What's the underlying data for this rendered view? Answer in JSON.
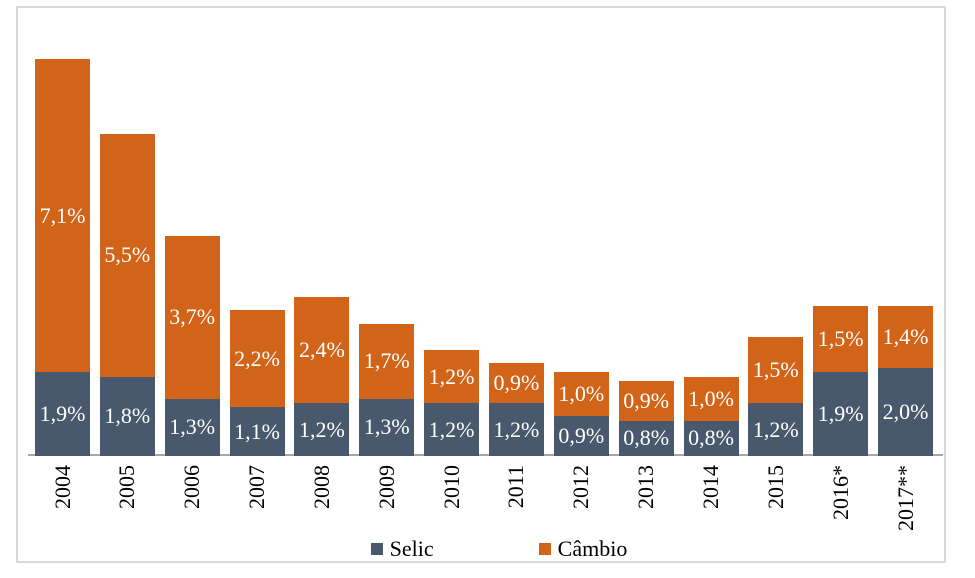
{
  "chart_data": {
    "type": "bar",
    "stacked": true,
    "title": "",
    "xlabel": "",
    "ylabel": "",
    "ylim": [
      0,
      9.0
    ],
    "grid": false,
    "axis_line_color": "#a6a6a6",
    "bar_label_color": "#ffffff",
    "categories": [
      "2004",
      "2005",
      "2006",
      "2007",
      "2008",
      "2009",
      "2010",
      "2011",
      "2012",
      "2013",
      "2014",
      "2015",
      "2016*",
      "2017**"
    ],
    "series": [
      {
        "name": "Selic",
        "color": "#48596d",
        "values": [
          1.9,
          1.8,
          1.3,
          1.1,
          1.2,
          1.3,
          1.2,
          1.2,
          0.9,
          0.8,
          0.8,
          1.2,
          1.9,
          2.0
        ],
        "labels": [
          "1,9%",
          "1,8%",
          "1,3%",
          "1,1%",
          "1,2%",
          "1,3%",
          "1,2%",
          "1,2%",
          "0,9%",
          "0,8%",
          "0,8%",
          "1,2%",
          "1,9%",
          "2,0%"
        ]
      },
      {
        "name": "Câmbio",
        "color": "#d26419",
        "values": [
          7.1,
          5.5,
          3.7,
          2.2,
          2.4,
          1.7,
          1.2,
          0.9,
          1.0,
          0.9,
          1.0,
          1.5,
          1.5,
          1.4
        ],
        "labels": [
          "7,1%",
          "5,5%",
          "3,7%",
          "2,2%",
          "2,4%",
          "1,7%",
          "1,2%",
          "0,9%",
          "1,0%",
          "0,9%",
          "1,0%",
          "1,5%",
          "1,5%",
          "1,4%"
        ]
      }
    ],
    "legend": {
      "position": "bottom",
      "entries": [
        "Selic",
        "Câmbio"
      ]
    }
  },
  "frame": {
    "border_color": "#d9d9d9",
    "background": "#ffffff"
  }
}
